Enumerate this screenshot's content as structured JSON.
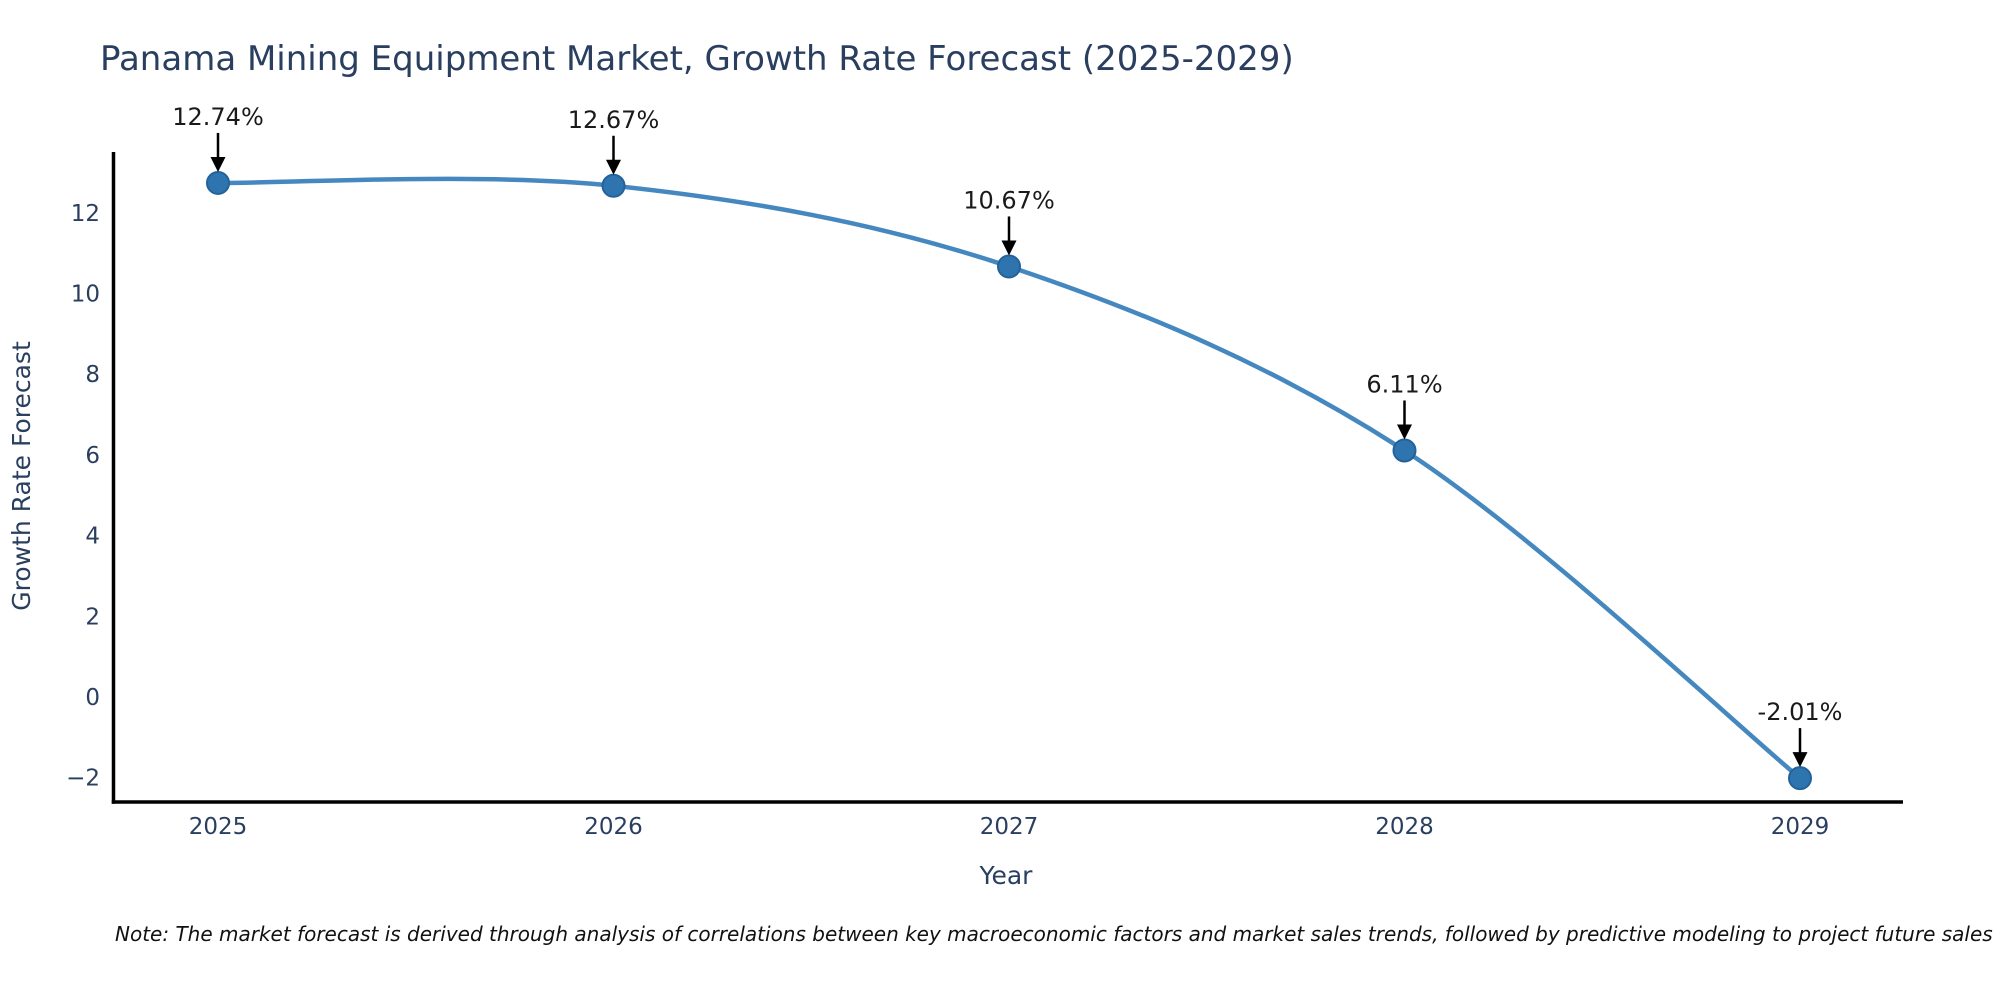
{
  "note": {
    "text": "Note: The market forecast is derived through analysis of correlations between key macroeconomic factors and market sales trends, followed by predictive modeling to project future sales"
  },
  "chart_data": {
    "type": "line",
    "curve": "spline",
    "title": "Panama Mining Equipment Market, Growth Rate Forecast (2025-2029)",
    "xlabel": "Year",
    "ylabel": "Growth Rate Forecast",
    "x": [
      2025,
      2026,
      2027,
      2028,
      2029
    ],
    "series": [
      {
        "name": "Growth Rate Forecast",
        "values": [
          12.74,
          12.67,
          10.67,
          6.11,
          -2.01
        ]
      }
    ],
    "point_labels": [
      "12.74%",
      "12.67%",
      "10.67%",
      "6.11%",
      "-2.01%"
    ],
    "yticks": [
      12,
      10,
      8,
      6,
      4,
      2,
      0,
      -2
    ],
    "xlim": [
      2024.73,
      2029.27
    ],
    "ylim": [
      -2.7,
      13.5
    ],
    "grid": false,
    "legend_position": "none",
    "colors": {
      "line": "#4588c0",
      "marker": "#2e74ae",
      "marker_edge": "#24629b",
      "axis": "#000000",
      "text": "#2a3f5f",
      "annotation_text": "#1a1a1a",
      "annotation_arrow": "#000000",
      "background": "#ffffff"
    }
  }
}
